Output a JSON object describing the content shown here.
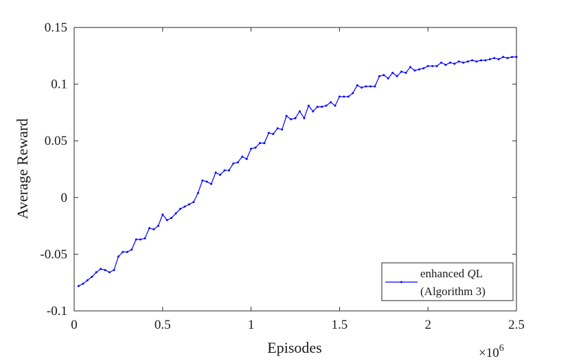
{
  "chart_data": {
    "type": "line",
    "title": "",
    "xlabel": "Episodes",
    "ylabel": "Average Reward",
    "x_multiplier_base": "×10",
    "x_multiplier_exp": "6",
    "xlim": [
      0,
      2.5
    ],
    "ylim": [
      -0.1,
      0.15
    ],
    "xticks": [
      0,
      0.5,
      1,
      1.5,
      2,
      2.5
    ],
    "xtick_labels": [
      "0",
      "0.5",
      "1",
      "1.5",
      "2",
      "2.5"
    ],
    "yticks": [
      -0.1,
      -0.05,
      0,
      0.05,
      0.1,
      0.15
    ],
    "ytick_labels": [
      "-0.1",
      "-0.05",
      "0",
      "0.05",
      "0.1",
      "0.15"
    ],
    "grid": false,
    "legend_position": "bottom-right",
    "legend_lines": [
      "enhanced QL",
      "(Algorithm 3)"
    ],
    "legend_italic_part": "Q",
    "series_color": "#0000ff",
    "series": [
      {
        "name": "enhanced QL (Algorithm 3)",
        "x": [
          0.025,
          0.05,
          0.075,
          0.1,
          0.125,
          0.15,
          0.175,
          0.2,
          0.225,
          0.25,
          0.275,
          0.3,
          0.325,
          0.35,
          0.375,
          0.4,
          0.425,
          0.45,
          0.475,
          0.5,
          0.525,
          0.55,
          0.575,
          0.6,
          0.625,
          0.65,
          0.675,
          0.7,
          0.725,
          0.75,
          0.775,
          0.8,
          0.825,
          0.85,
          0.875,
          0.9,
          0.925,
          0.95,
          0.975,
          1.0,
          1.025,
          1.05,
          1.075,
          1.1,
          1.125,
          1.15,
          1.175,
          1.2,
          1.225,
          1.25,
          1.275,
          1.3,
          1.325,
          1.35,
          1.375,
          1.4,
          1.425,
          1.45,
          1.475,
          1.5,
          1.525,
          1.55,
          1.575,
          1.6,
          1.625,
          1.65,
          1.675,
          1.7,
          1.725,
          1.75,
          1.775,
          1.8,
          1.825,
          1.85,
          1.875,
          1.9,
          1.925,
          1.95,
          1.975,
          2.0,
          2.025,
          2.05,
          2.075,
          2.1,
          2.125,
          2.15,
          2.175,
          2.2,
          2.225,
          2.25,
          2.275,
          2.3,
          2.325,
          2.35,
          2.375,
          2.4,
          2.425,
          2.45,
          2.475,
          2.5
        ],
        "values": [
          -0.078,
          -0.076,
          -0.073,
          -0.07,
          -0.066,
          -0.063,
          -0.064,
          -0.066,
          -0.064,
          -0.052,
          -0.048,
          -0.048,
          -0.046,
          -0.037,
          -0.037,
          -0.036,
          -0.027,
          -0.028,
          -0.025,
          -0.015,
          -0.02,
          -0.018,
          -0.014,
          -0.01,
          -0.008,
          -0.006,
          -0.004,
          0.004,
          0.015,
          0.014,
          0.012,
          0.022,
          0.02,
          0.024,
          0.024,
          0.03,
          0.031,
          0.036,
          0.034,
          0.043,
          0.044,
          0.048,
          0.048,
          0.057,
          0.056,
          0.061,
          0.06,
          0.072,
          0.069,
          0.07,
          0.076,
          0.07,
          0.081,
          0.076,
          0.08,
          0.08,
          0.081,
          0.084,
          0.081,
          0.089,
          0.089,
          0.089,
          0.092,
          0.099,
          0.097,
          0.098,
          0.098,
          0.098,
          0.107,
          0.108,
          0.105,
          0.11,
          0.107,
          0.111,
          0.11,
          0.115,
          0.112,
          0.113,
          0.114,
          0.116,
          0.116,
          0.116,
          0.119,
          0.117,
          0.119,
          0.118,
          0.12,
          0.119,
          0.12,
          0.121,
          0.12,
          0.121,
          0.121,
          0.122,
          0.123,
          0.122,
          0.124,
          0.123,
          0.124,
          0.124
        ]
      }
    ]
  }
}
